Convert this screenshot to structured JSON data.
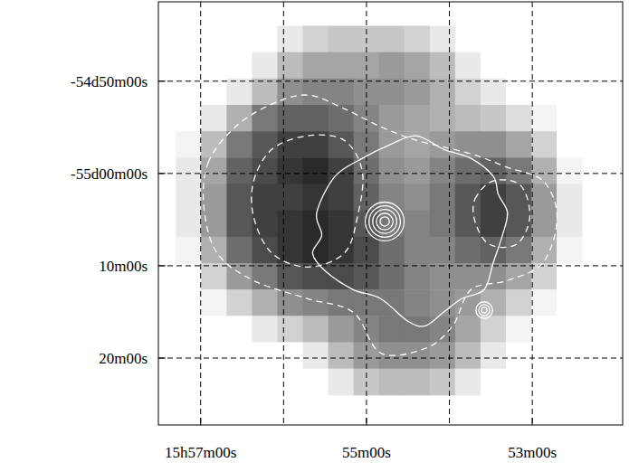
{
  "chart_data": {
    "type": "sky_map",
    "xlim": [
      957.51,
      951.91
    ],
    "ylim": [
      -3327.25,
      -3281.4
    ],
    "xticks": [
      {
        "value": 957,
        "label": "15h57m00s"
      },
      {
        "value": 955,
        "label": "55m00s"
      },
      {
        "value": 953,
        "label": "53m00s"
      }
    ],
    "xgrid": [
      957,
      956,
      955,
      954,
      953
    ],
    "yticks": [
      {
        "value": -3290,
        "label": "-54d50m00s"
      },
      {
        "value": -3300,
        "label": "-55d00m00s"
      },
      {
        "value": -3310,
        "label": "10m00s"
      },
      {
        "value": -3320,
        "label": "20m00s"
      }
    ],
    "grid": true,
    "cell_xlim": [
      957.3,
      952.4
    ],
    "cell_ylim": [
      -3284,
      -3324
    ],
    "cells": [
      [
        0,
        0,
        0,
        0,
        0.1,
        0.2,
        0.25,
        0.25,
        0.25,
        0.2,
        0.1,
        0,
        0,
        0,
        0,
        0
      ],
      [
        0,
        0,
        0,
        0.1,
        0.3,
        0.4,
        0.4,
        0.4,
        0.45,
        0.4,
        0.3,
        0.1,
        0,
        0,
        0,
        0
      ],
      [
        0,
        0,
        0.1,
        0.3,
        0.5,
        0.55,
        0.55,
        0.5,
        0.5,
        0.45,
        0.35,
        0.2,
        0.1,
        0,
        0,
        0
      ],
      [
        0,
        0.1,
        0.35,
        0.6,
        0.7,
        0.7,
        0.65,
        0.55,
        0.45,
        0.4,
        0.35,
        0.3,
        0.25,
        0.15,
        0.05,
        0
      ],
      [
        0.05,
        0.3,
        0.6,
        0.75,
        0.85,
        0.85,
        0.75,
        0.6,
        0.45,
        0.4,
        0.45,
        0.5,
        0.5,
        0.4,
        0.2,
        0
      ],
      [
        0.1,
        0.4,
        0.7,
        0.8,
        0.9,
        0.95,
        0.85,
        0.65,
        0.5,
        0.45,
        0.55,
        0.65,
        0.7,
        0.6,
        0.35,
        0.05
      ],
      [
        0.1,
        0.45,
        0.75,
        0.85,
        0.85,
        0.9,
        0.85,
        0.7,
        0.55,
        0.5,
        0.6,
        0.75,
        0.85,
        0.75,
        0.45,
        0.1
      ],
      [
        0.1,
        0.45,
        0.75,
        0.85,
        0.9,
        0.95,
        0.9,
        0.75,
        0.6,
        0.55,
        0.6,
        0.75,
        0.85,
        0.75,
        0.45,
        0.1
      ],
      [
        0.05,
        0.35,
        0.65,
        0.8,
        0.9,
        0.95,
        0.9,
        0.8,
        0.65,
        0.55,
        0.55,
        0.65,
        0.7,
        0.6,
        0.35,
        0.05
      ],
      [
        0,
        0.2,
        0.45,
        0.6,
        0.75,
        0.8,
        0.8,
        0.75,
        0.65,
        0.55,
        0.5,
        0.5,
        0.5,
        0.4,
        0.2,
        0
      ],
      [
        0,
        0.05,
        0.2,
        0.35,
        0.5,
        0.55,
        0.6,
        0.6,
        0.6,
        0.55,
        0.5,
        0.45,
        0.35,
        0.2,
        0.05,
        0
      ],
      [
        0,
        0,
        0,
        0.1,
        0.2,
        0.3,
        0.45,
        0.55,
        0.6,
        0.6,
        0.55,
        0.4,
        0.2,
        0.05,
        0,
        0
      ],
      [
        0,
        0,
        0,
        0,
        0,
        0.1,
        0.3,
        0.45,
        0.5,
        0.5,
        0.45,
        0.3,
        0.1,
        0,
        0,
        0
      ],
      [
        0,
        0,
        0,
        0,
        0,
        0,
        0.1,
        0.25,
        0.3,
        0.3,
        0.25,
        0.1,
        0,
        0,
        0,
        0
      ]
    ],
    "contours": [
      {
        "line_style": "dashed",
        "points": [
          [
            956.91,
            -3298.85
          ],
          [
            956.58,
            -3294.93
          ],
          [
            956.14,
            -3292.48
          ],
          [
            955.71,
            -3291.5
          ],
          [
            955.27,
            -3292.97
          ],
          [
            954.83,
            -3294.93
          ],
          [
            954.4,
            -3296.4
          ],
          [
            953.74,
            -3297.87
          ],
          [
            953.3,
            -3299.34
          ],
          [
            952.87,
            -3300.81
          ],
          [
            952.7,
            -3304.73
          ],
          [
            952.87,
            -3309.64
          ],
          [
            953.3,
            -3311.6
          ],
          [
            953.74,
            -3312.58
          ],
          [
            953.96,
            -3316.5
          ],
          [
            954.29,
            -3318.95
          ],
          [
            954.83,
            -3319.44
          ],
          [
            955.16,
            -3315.03
          ],
          [
            955.71,
            -3313.56
          ],
          [
            956.36,
            -3311.6
          ],
          [
            956.8,
            -3308.65
          ],
          [
            956.96,
            -3303.75
          ]
        ]
      },
      {
        "line_style": "dashed",
        "points": [
          [
            956.36,
            -3300.81
          ],
          [
            956.14,
            -3297.38
          ],
          [
            955.71,
            -3295.91
          ],
          [
            955.27,
            -3296.4
          ],
          [
            955.05,
            -3299.83
          ],
          [
            955.11,
            -3304.73
          ],
          [
            955.27,
            -3308.65
          ],
          [
            955.71,
            -3310.13
          ],
          [
            956.14,
            -3308.65
          ],
          [
            956.36,
            -3304.73
          ]
        ]
      },
      {
        "line_style": "dashed",
        "points": [
          [
            953.69,
            -3302.77
          ],
          [
            953.47,
            -3300.81
          ],
          [
            953.14,
            -3301.3
          ],
          [
            953.03,
            -3304.73
          ],
          [
            953.19,
            -3307.67
          ],
          [
            953.52,
            -3307.67
          ],
          [
            953.69,
            -3305.22
          ]
        ]
      },
      {
        "line_style": "solid",
        "points": [
          [
            955.6,
            -3304.24
          ],
          [
            955.38,
            -3300.32
          ],
          [
            955.05,
            -3298.36
          ],
          [
            954.72,
            -3296.89
          ],
          [
            954.4,
            -3295.91
          ],
          [
            954.07,
            -3297.38
          ],
          [
            953.74,
            -3298.36
          ],
          [
            953.47,
            -3300.32
          ],
          [
            953.41,
            -3302.28
          ],
          [
            953.3,
            -3304.24
          ],
          [
            953.36,
            -3306.69
          ],
          [
            953.47,
            -3309.64
          ],
          [
            953.58,
            -3312.58
          ],
          [
            953.85,
            -3313.56
          ],
          [
            954.07,
            -3315.03
          ],
          [
            954.29,
            -3316.5
          ],
          [
            954.5,
            -3316.01
          ],
          [
            954.83,
            -3313.56
          ],
          [
            955.16,
            -3312.58
          ],
          [
            955.49,
            -3310.62
          ],
          [
            955.65,
            -3308.65
          ],
          [
            955.54,
            -3306.69
          ]
        ]
      }
    ],
    "sources": [
      {
        "ra": 954.78,
        "dec": -3305.2,
        "radii": [
          0.5,
          0.9,
          1.3,
          1.7,
          2.1
        ]
      },
      {
        "ra": 953.58,
        "dec": -3314.8,
        "radii": [
          0.3,
          0.6,
          0.9
        ]
      }
    ]
  }
}
